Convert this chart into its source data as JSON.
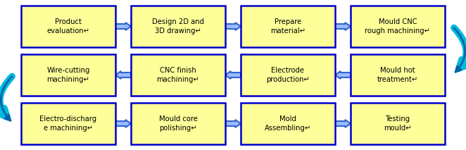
{
  "bg_color": "#ffffff",
  "box_fill": "#ffff99",
  "box_edge": "#0000cc",
  "box_edge_width": 1.8,
  "arrow_color": "#3366cc",
  "arrow_face": "#99bbff",
  "swirl_color1": "#00bbdd",
  "swirl_color2": "#0066aa",
  "text_color": "#000000",
  "rows": [
    [
      "Product\nevaluation↵",
      "Design 2D and\n3D drawing↵",
      "Prepare\nmaterial↵",
      "Mould CNC\nrough machining↵"
    ],
    [
      "Wire-cutting\nmachining↵",
      "CNC finish\nmachining↵",
      "Electrode\nproduction↵",
      "Mould hot\ntreatment↵"
    ],
    [
      "Electro-discharg\ne machining↵",
      "Mould core\npolishing↵",
      "Mold\nAssembling↵",
      "Testing\nmould↵"
    ]
  ],
  "fig_width": 6.62,
  "fig_height": 2.13
}
